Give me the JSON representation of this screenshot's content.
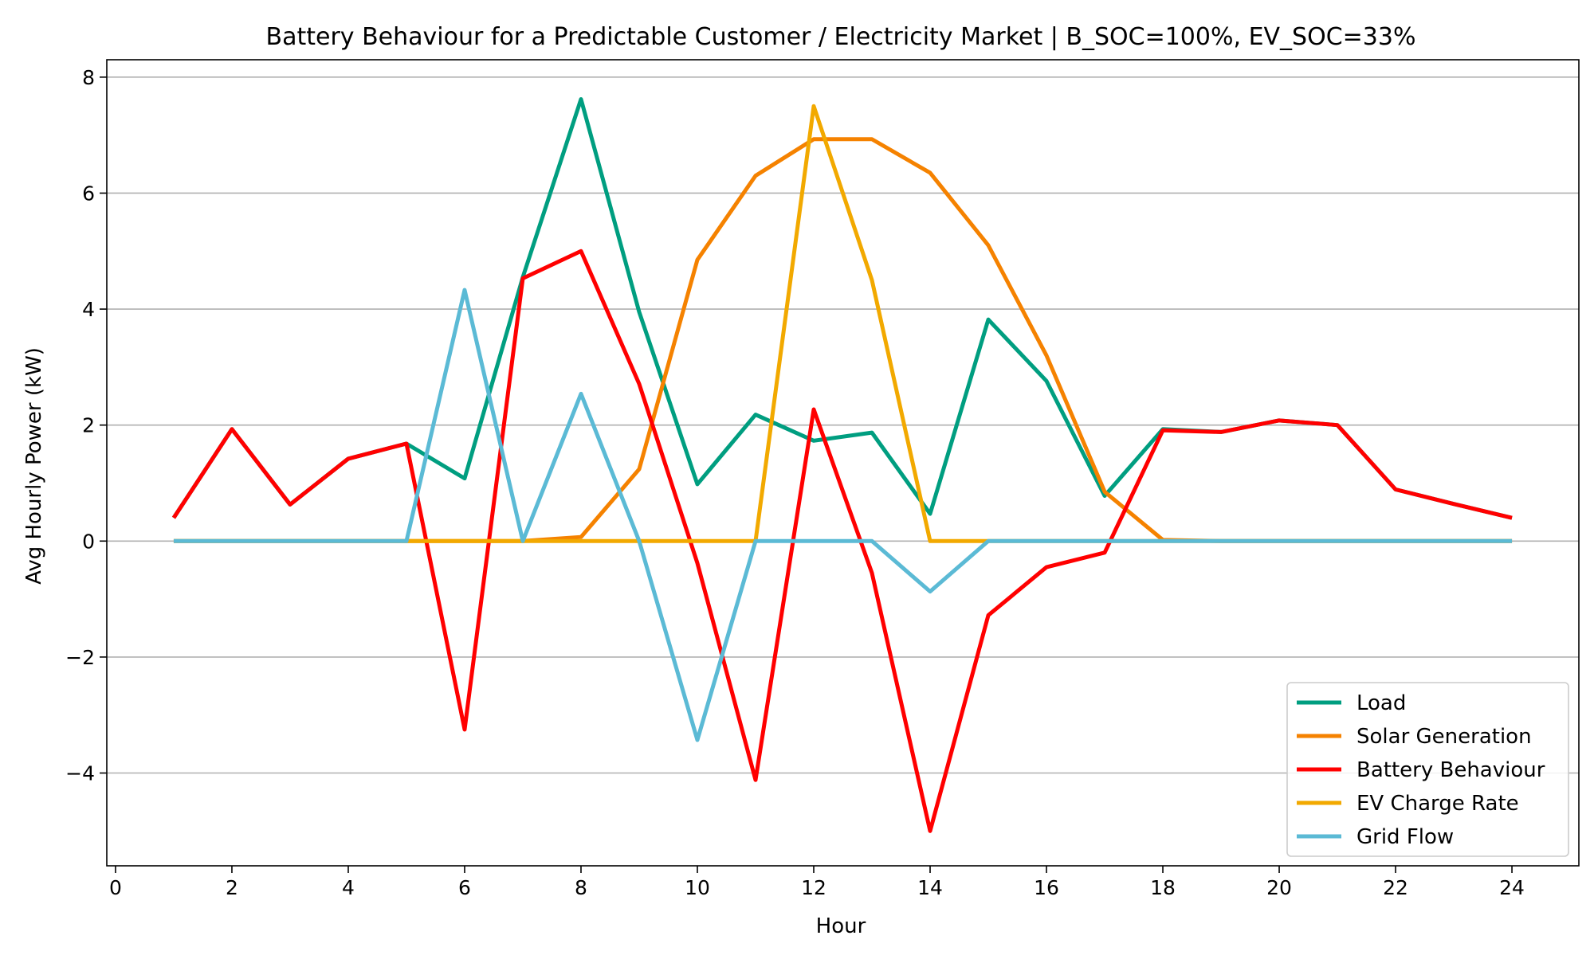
{
  "chart_data": {
    "type": "line",
    "title": "Battery Behaviour for a Predictable Customer / Electricity Market | B_SOC=100%, EV_SOC=33%",
    "xlabel": "Hour",
    "ylabel": "Avg Hourly Power (kW)",
    "xlim": [
      -0.15,
      25.15
    ],
    "ylim": [
      -5.6,
      8.3
    ],
    "xticks": [
      0,
      2,
      4,
      6,
      8,
      10,
      12,
      14,
      16,
      18,
      20,
      22,
      24
    ],
    "yticks": [
      -4,
      -2,
      0,
      2,
      4,
      6,
      8
    ],
    "ytick_labels": [
      "−4",
      "−2",
      "0",
      "2",
      "4",
      "6",
      "8"
    ],
    "grid": "horizontal",
    "legend_position": "lower-right",
    "x": [
      1,
      2,
      3,
      4,
      5,
      6,
      7,
      8,
      9,
      10,
      11,
      12,
      13,
      14,
      15,
      16,
      17,
      18,
      19,
      20,
      21,
      22,
      23,
      24
    ],
    "series": [
      {
        "name": "Load",
        "color": "#009e80",
        "values": [
          0.4,
          1.93,
          0.63,
          1.42,
          1.68,
          1.08,
          4.55,
          7.62,
          3.95,
          0.98,
          2.18,
          1.73,
          1.87,
          0.47,
          3.82,
          2.76,
          0.78,
          1.93,
          1.88,
          2.08,
          2.0,
          0.89,
          0.64,
          0.4
        ]
      },
      {
        "name": "Solar Generation",
        "color": "#f58200",
        "values": [
          0,
          0,
          0,
          0,
          0,
          0,
          0,
          0.07,
          1.24,
          4.85,
          6.3,
          6.93,
          6.93,
          6.35,
          5.1,
          3.2,
          0.85,
          0.02,
          0,
          0,
          0,
          0,
          0,
          0
        ]
      },
      {
        "name": "Battery Behaviour",
        "color": "#ff0000",
        "values": [
          0.4,
          1.93,
          0.63,
          1.42,
          1.68,
          -3.25,
          4.53,
          5.0,
          2.71,
          -0.38,
          -4.12,
          2.27,
          -0.55,
          -5.0,
          -1.28,
          -0.45,
          -0.2,
          1.91,
          1.88,
          2.08,
          2.0,
          0.89,
          0.64,
          0.4
        ]
      },
      {
        "name": "EV Charge Rate",
        "color": "#f2a900",
        "values": [
          0,
          0,
          0,
          0,
          0,
          0,
          0,
          0,
          0,
          0,
          0,
          7.5,
          4.5,
          0,
          0,
          0,
          0,
          0,
          0,
          0,
          0,
          0,
          0,
          0
        ]
      },
      {
        "name": "Grid Flow",
        "color": "#5bbad5",
        "values": [
          0,
          0,
          0,
          0,
          0,
          4.33,
          0,
          2.54,
          0,
          -3.43,
          0,
          0,
          0,
          -0.87,
          0,
          0,
          0,
          0,
          0,
          0,
          0,
          0,
          0,
          0
        ]
      }
    ]
  }
}
